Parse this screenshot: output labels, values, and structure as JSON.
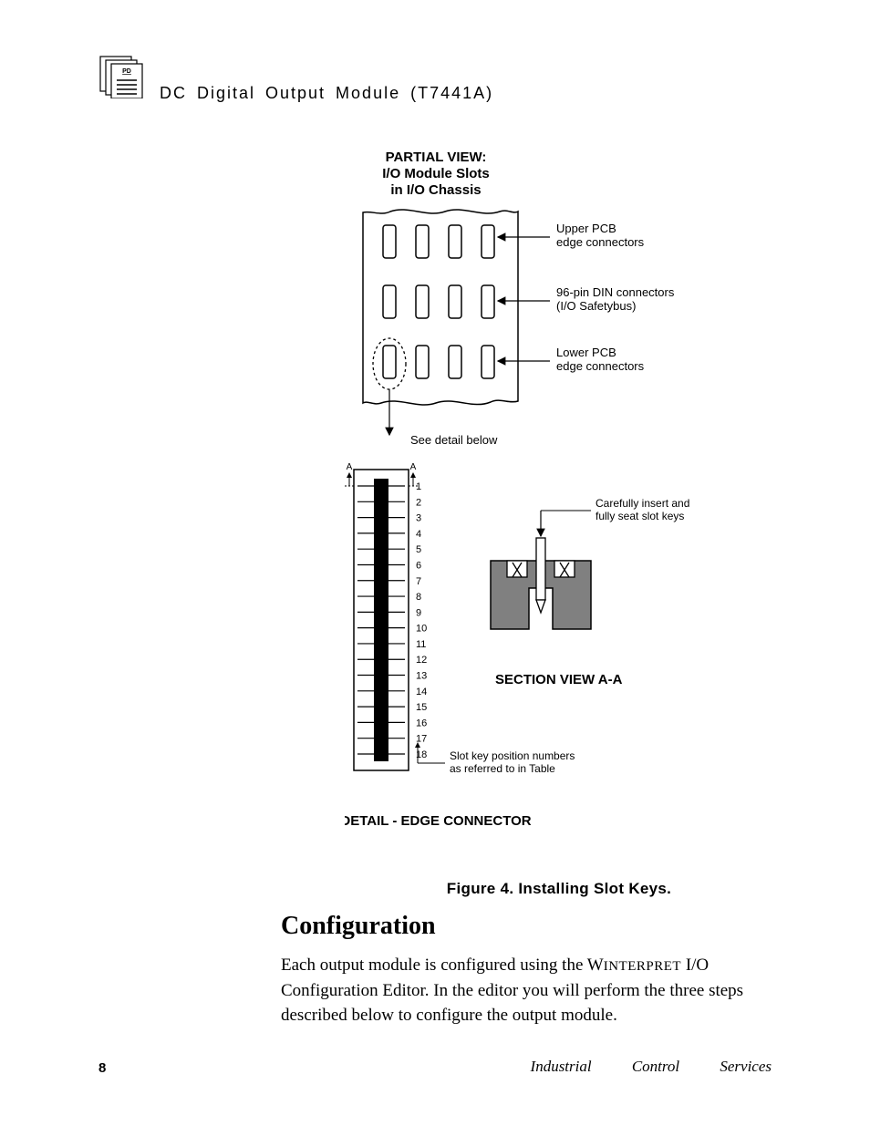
{
  "header": {
    "icon_label": "PD",
    "title": "DC  Digital  Output  Module (T7441A)"
  },
  "figure": {
    "partial_view_title_l1": "PARTIAL VIEW:",
    "partial_view_title_l2": "I/O Module Slots",
    "partial_view_title_l3": "in I/O Chassis",
    "label_upper_l1": "Upper PCB",
    "label_upper_l2": "edge connectors",
    "label_din_l1": "96-pin DIN connectors",
    "label_din_l2": "(I/O Safetybus)",
    "label_lower_l1": "Lower PCB",
    "label_lower_l2": "edge connectors",
    "see_detail": "See detail below",
    "detail_title": "DETAIL - EDGE CONNECTOR",
    "section_title": "SECTION VIEW    A-A",
    "insert_l1": "Carefully insert and",
    "insert_l2": "fully seat slot keys",
    "slotnote_l1": "Slot key position numbers",
    "slotnote_l2": "as referred to in Table",
    "slot_numbers": [
      "1",
      "2",
      "3",
      "4",
      "5",
      "6",
      "7",
      "8",
      "9",
      "10",
      "11",
      "12",
      "13",
      "14",
      "15",
      "16",
      "17",
      "18"
    ],
    "section_marker": "A",
    "caption": "Figure 4.  Installing Slot Keys."
  },
  "body": {
    "heading": "Configuration",
    "para_seg1": "Each output module is configured using the W",
    "para_seg2": "INTERPRET",
    "para_seg3": " I/O Configuration Editor.  In the editor you will perform the three steps described below to configure the output module."
  },
  "footer": {
    "page_number": "8",
    "service_line": "Industrial Control Services"
  },
  "style": {
    "slot_count": 18,
    "colors": {
      "ink": "#000000",
      "bg": "#ffffff",
      "grayfill": "#808080"
    }
  }
}
